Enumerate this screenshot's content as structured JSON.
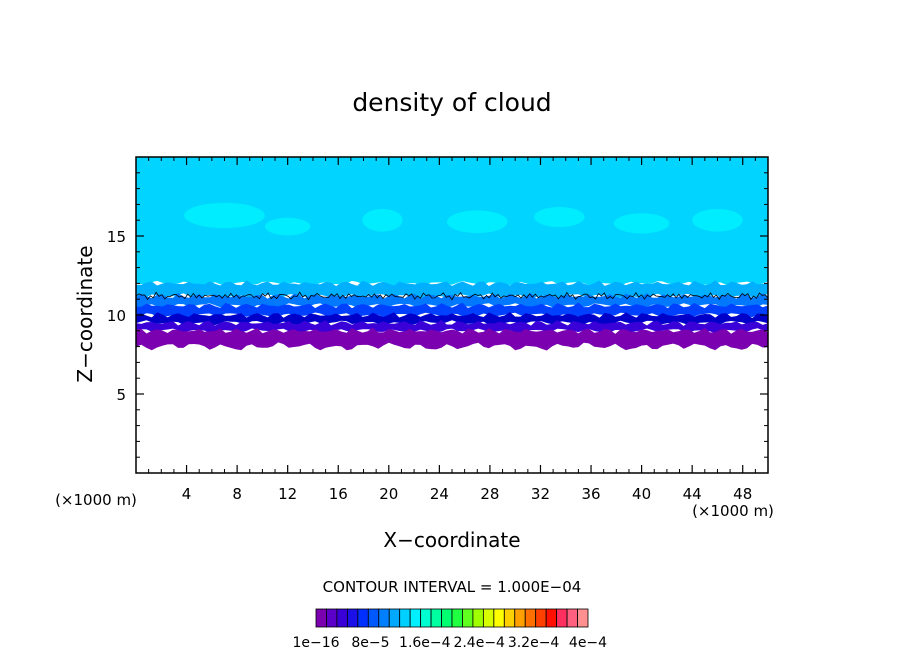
{
  "chart_data": {
    "type": "heatmap",
    "title": "density of cloud",
    "xlabel": "X−coordinate",
    "ylabel": "Z−coordinate",
    "x_unit_left": "(×1000 m)",
    "x_unit_right": "(×1000 m)",
    "xlim": [
      0,
      50
    ],
    "ylim": [
      0,
      20
    ],
    "x_ticks": [
      4,
      8,
      12,
      16,
      20,
      24,
      28,
      32,
      36,
      40,
      44,
      48
    ],
    "x_tick_labels": [
      "4",
      "8",
      "12",
      "16",
      "20",
      "24",
      "28",
      "32",
      "36",
      "40",
      "44",
      "48"
    ],
    "y_ticks": [
      5,
      10,
      15
    ],
    "y_tick_labels": [
      "5",
      "10",
      "15"
    ],
    "contour_interval_label": "CONTOUR INTERVAL = 1.000E−04",
    "colorbar_labels": [
      "1e−16",
      "8e−5",
      "1.6e−4",
      "2.4e−4",
      "3.2e−4",
      "4e−4"
    ],
    "colorbar_values": [
      1e-16,
      8e-05,
      0.00016,
      0.00024,
      0.00032,
      0.0004
    ],
    "colorbar_colors": [
      "#7a00b0",
      "#5a00c8",
      "#3a00d8",
      "#1c10e8",
      "#0030ff",
      "#0058ff",
      "#0080ff",
      "#00a8ff",
      "#00d0ff",
      "#00f0ff",
      "#00ffd0",
      "#00ffa0",
      "#00ff70",
      "#20ff40",
      "#60ff20",
      "#a0ff00",
      "#d8ff00",
      "#ffff00",
      "#ffd000",
      "#ffa000",
      "#ff7000",
      "#ff4000",
      "#ff1000",
      "#ff3060",
      "#ff6080",
      "#ff9090"
    ],
    "layers": [
      {
        "z_bottom": 8.0,
        "z_top": 9.0,
        "color": "#7a00b0"
      },
      {
        "z_bottom": 9.0,
        "z_top": 9.5,
        "color": "#3a00d8"
      },
      {
        "z_bottom": 9.5,
        "z_top": 10.0,
        "color": "#0000c8"
      },
      {
        "z_bottom": 10.0,
        "z_top": 10.6,
        "color": "#0040ff"
      },
      {
        "z_bottom": 10.6,
        "z_top": 11.2,
        "color": "#0078ff"
      },
      {
        "z_bottom": 11.2,
        "z_top": 12.0,
        "color": "#00b0ff"
      },
      {
        "z_bottom": 12.0,
        "z_top": 20.0,
        "color": "#00d4ff"
      }
    ],
    "contour_line_z": 11.2
  }
}
